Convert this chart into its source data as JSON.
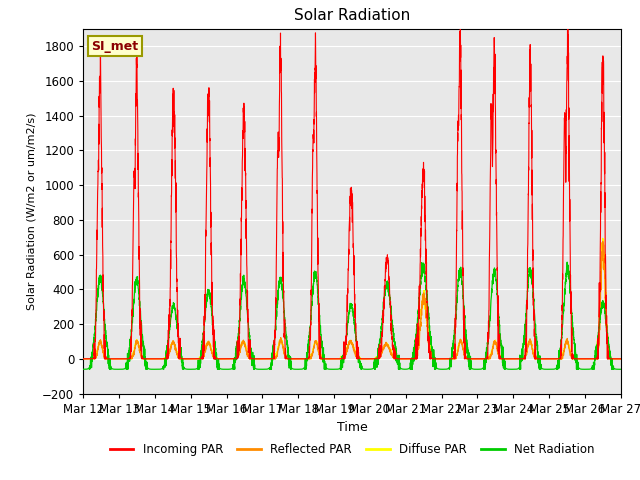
{
  "title": "Solar Radiation",
  "ylabel": "Solar Radiation (W/m2 or um/m2/s)",
  "xlabel": "Time",
  "ylim": [
    -200,
    1900
  ],
  "yticks": [
    -200,
    0,
    200,
    400,
    600,
    800,
    1000,
    1200,
    1400,
    1600,
    1800
  ],
  "start_day": 12,
  "end_day": 27,
  "n_days": 15,
  "points_per_day": 288,
  "station_label": "SI_met",
  "colors": {
    "incoming": "#ff0000",
    "reflected": "#ff8c00",
    "diffuse": "#ffff00",
    "net": "#00cc00"
  },
  "legend_labels": [
    "Incoming PAR",
    "Reflected PAR",
    "Diffuse PAR",
    "Net Radiation"
  ],
  "bg_color": "#e8e8e8",
  "fig_color": "#ffffff",
  "grid_color": "#ffffff",
  "day_peaks_incoming": [
    1660,
    1640,
    1500,
    1510,
    1440,
    1720,
    1740,
    970,
    580,
    1080,
    1780,
    1740,
    1700,
    1800,
    1720
  ],
  "day_peaks_reflected": [
    100,
    100,
    95,
    95,
    100,
    110,
    100,
    100,
    85,
    360,
    105,
    100,
    105,
    105,
    660
  ],
  "day_peaks_diffuse": [
    100,
    100,
    95,
    95,
    100,
    110,
    100,
    100,
    85,
    360,
    105,
    100,
    105,
    105,
    660
  ],
  "day_peaks_net": [
    470,
    460,
    310,
    390,
    450,
    460,
    490,
    310,
    430,
    530,
    510,
    510,
    510,
    520,
    320
  ],
  "net_night": -60,
  "day_widths_incoming": [
    0.05,
    0.05,
    0.06,
    0.06,
    0.06,
    0.05,
    0.05,
    0.07,
    0.08,
    0.07,
    0.05,
    0.05,
    0.05,
    0.05,
    0.05
  ],
  "day_widths_net": [
    0.1,
    0.1,
    0.1,
    0.1,
    0.1,
    0.1,
    0.1,
    0.1,
    0.12,
    0.12,
    0.1,
    0.1,
    0.1,
    0.1,
    0.1
  ]
}
